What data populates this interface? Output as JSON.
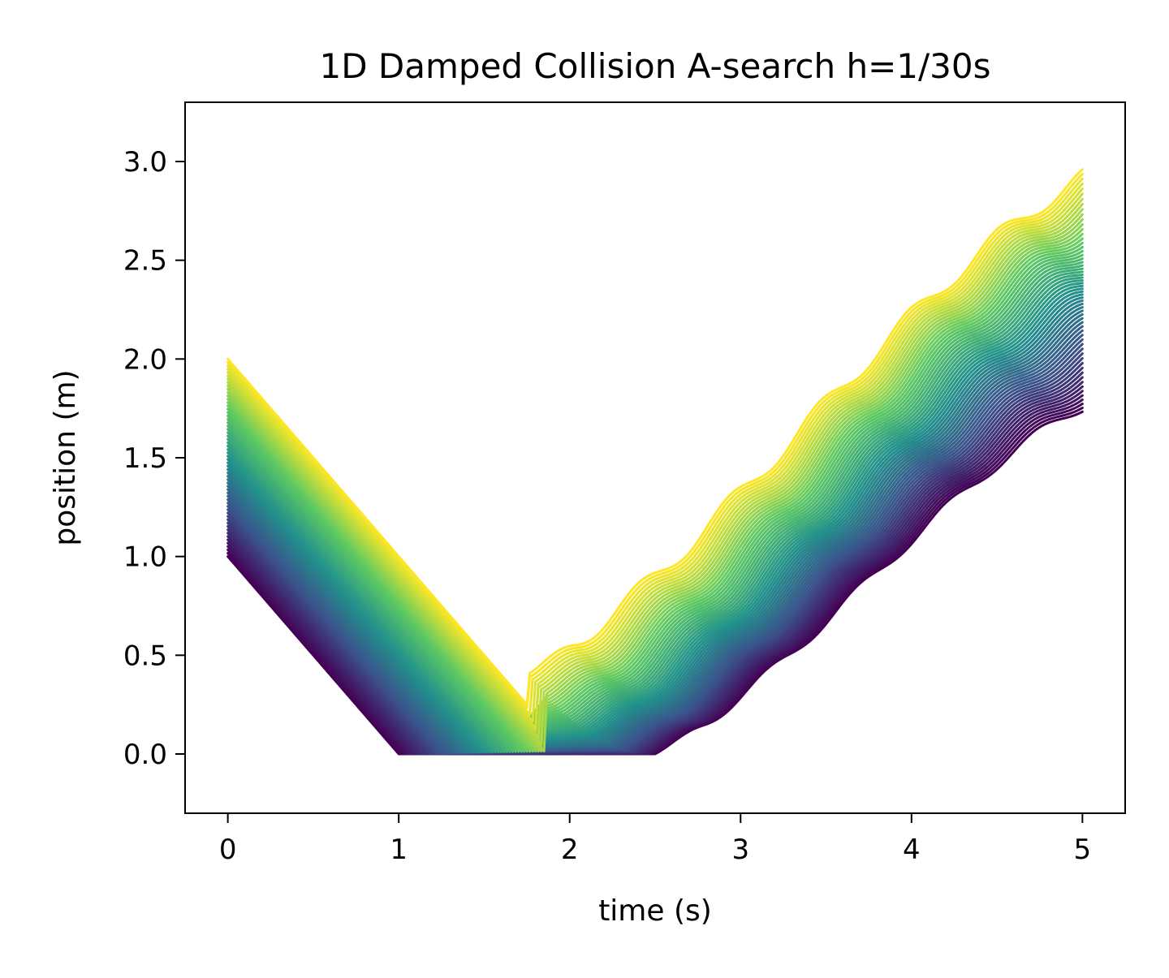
{
  "chart_data": {
    "type": "line",
    "title": "1D Damped Collision A-search h=1/30s",
    "xlabel": "time (s)",
    "ylabel": "position (m)",
    "xlim": [
      -0.25,
      5.25
    ],
    "ylim": [
      -0.3,
      3.3
    ],
    "x_ticks": [
      "0",
      "1",
      "2",
      "3",
      "4",
      "5"
    ],
    "y_ticks": [
      "0.0",
      "0.5",
      "1.0",
      "1.5",
      "2.0",
      "2.5",
      "3.0"
    ],
    "grid": false,
    "legend": "none",
    "colormap": "viridis",
    "colormap_stops": [
      "#440154",
      "#3b528b",
      "#21918c",
      "#5ec962",
      "#fde725"
    ],
    "series_count": 60,
    "series_description": {
      "initial_position_range": [
        1.0,
        2.0
      ],
      "final_position_range": [
        1.76,
        2.92
      ],
      "floor_position": 0.0,
      "time_range": [
        0,
        5
      ]
    },
    "series_envelope": {
      "lowest_series": {
        "color": "#440154",
        "points": [
          [
            0,
            1.0
          ],
          [
            1.0,
            0.0
          ],
          [
            2.5,
            0.0
          ],
          [
            2.7,
            0.05
          ],
          [
            3.0,
            0.5
          ],
          [
            3.5,
            0.8
          ],
          [
            4.0,
            1.25
          ],
          [
            4.5,
            1.45
          ],
          [
            4.8,
            1.6
          ],
          [
            5.0,
            1.76
          ]
        ]
      },
      "highest_series": {
        "color": "#fde725",
        "points": [
          [
            0,
            2.0
          ],
          [
            1.7,
            0.35
          ],
          [
            1.8,
            0.4
          ],
          [
            1.9,
            0.72
          ],
          [
            2.1,
            0.74
          ],
          [
            2.3,
            1.0
          ],
          [
            2.7,
            1.3
          ],
          [
            3.0,
            1.55
          ],
          [
            3.5,
            1.8
          ],
          [
            4.0,
            2.15
          ],
          [
            4.5,
            2.45
          ],
          [
            4.8,
            2.75
          ],
          [
            5.0,
            2.92
          ]
        ]
      }
    }
  }
}
